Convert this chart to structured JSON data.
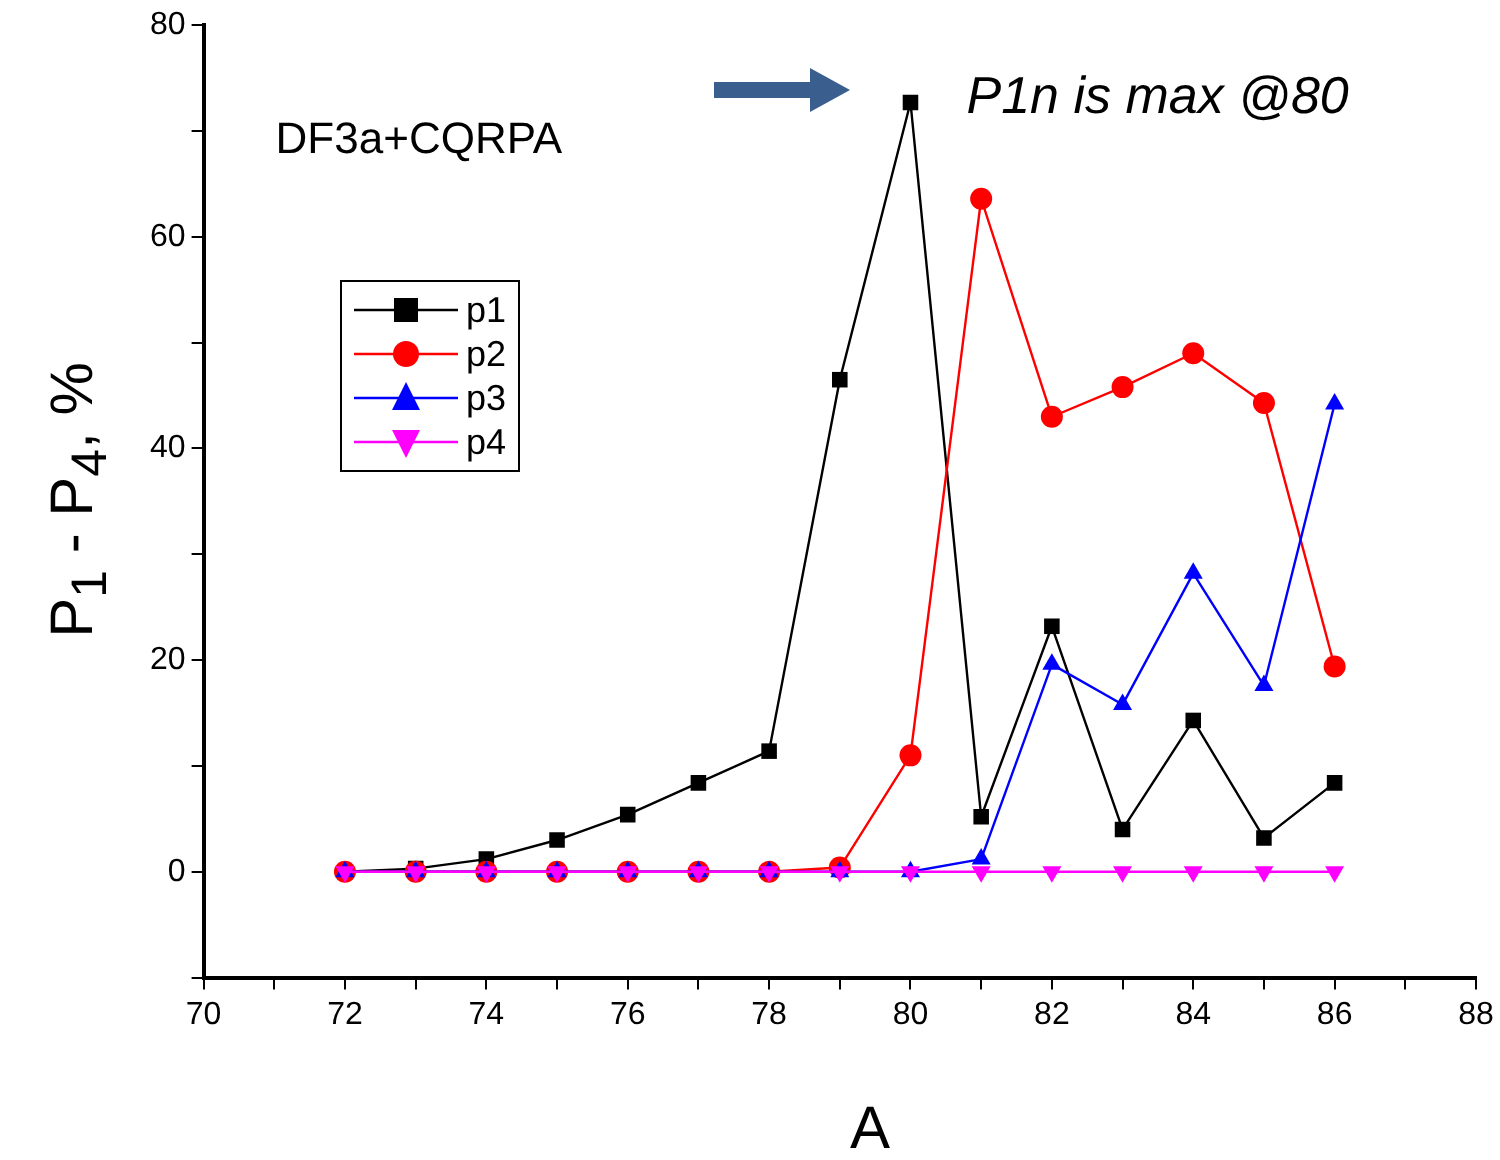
{
  "chart_data": {
    "type": "line",
    "xlabel": "A",
    "ylabel": "P$_{1}$ - P$_{4}$, %",
    "annotations": [
      "DF3a+CQRPA",
      {
        "text": "P1n is max @80",
        "x": 80,
        "y": 72.7
      }
    ],
    "x": [
      72,
      73,
      74,
      75,
      76,
      77,
      78,
      79,
      80,
      81,
      82,
      83,
      84,
      85,
      86
    ],
    "series": [
      {
        "name": "p1",
        "color": "#000000",
        "marker": "square",
        "values": [
          0,
          0.3,
          1.2,
          3,
          5.4,
          8.4,
          11.4,
          46.5,
          72.7,
          5.2,
          23.2,
          4,
          14.3,
          3.2,
          8.4
        ]
      },
      {
        "name": "p2",
        "color": "#ff0000",
        "marker": "circle",
        "values": [
          0,
          0,
          0,
          0,
          0,
          0,
          0,
          0.4,
          11,
          63.6,
          43,
          45.8,
          49,
          44.3,
          19.4
        ]
      },
      {
        "name": "p3",
        "color": "#0000ff",
        "marker": "triangle",
        "values": [
          0,
          0,
          0,
          0,
          0,
          0,
          0,
          0,
          0,
          1.2,
          19.6,
          15.8,
          28.2,
          17.6,
          44.2
        ]
      },
      {
        "name": "p4",
        "color": "#ff00ff",
        "marker": "triangle_down",
        "values": [
          0,
          0,
          0,
          0,
          0,
          0,
          0,
          0,
          0,
          0,
          0,
          0,
          0,
          0,
          0
        ]
      }
    ],
    "xlim": [
      70,
      88
    ],
    "xticks": [
      70,
      {
        "value": 71,
        "label": null
      },
      72,
      {
        "value": 73,
        "label": null
      },
      74,
      {
        "value": 75,
        "label": null
      },
      76,
      {
        "value": 77,
        "label": null
      },
      78,
      {
        "value": 79,
        "label": null
      },
      80,
      {
        "value": 81,
        "label": null
      },
      82,
      {
        "value": 83,
        "label": null
      },
      84,
      {
        "value": 85,
        "label": null
      },
      86,
      {
        "value": 87,
        "label": null
      },
      88
    ],
    "ylim": [
      -10,
      80
    ],
    "yticks": [
      {
        "value": -10,
        "label": null
      },
      0,
      {
        "value": 10,
        "label": null
      },
      20,
      {
        "value": 30,
        "label": null
      },
      40,
      {
        "value": 50,
        "label": null
      },
      60,
      {
        "value": 70,
        "label": null
      },
      80
    ],
    "grid": false,
    "legend": "top left",
    "line_style": "solid"
  }
}
